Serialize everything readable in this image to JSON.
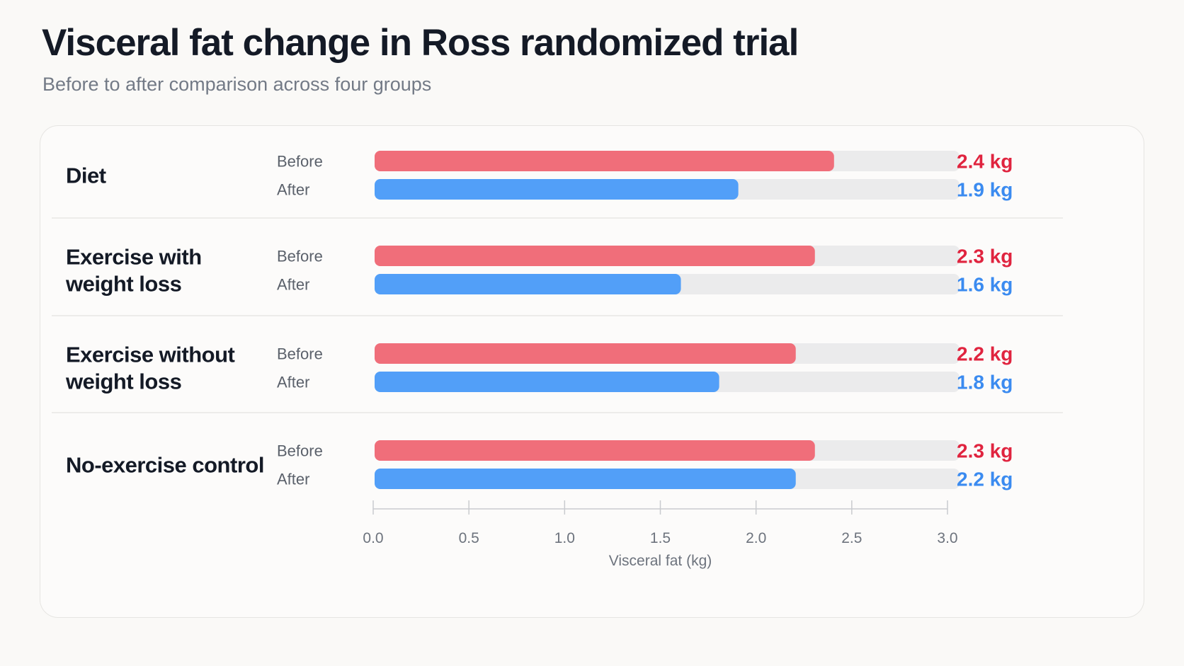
{
  "header": {
    "title": "Visceral fat change in Ross randomized trial",
    "subtitle": "Before to after comparison across four groups"
  },
  "colors": {
    "before": "#f06e7a",
    "after": "#529ff8",
    "before_text": "#e0243f",
    "after_text": "#3b8bf0",
    "track": "#ebebec",
    "divider": "#e8e7e4",
    "axis": "#c9cbcf"
  },
  "chart_data": {
    "type": "bar",
    "orientation": "horizontal",
    "title": "Visceral fat change in Ross randomized trial",
    "subtitle": "Before to after comparison across four groups",
    "xlabel": "Visceral fat (kg)",
    "xlim": [
      0,
      3.0
    ],
    "xticks": [
      "0.0",
      "0.5",
      "1.0",
      "1.5",
      "2.0",
      "2.5",
      "3.0"
    ],
    "grid": false,
    "categories": [
      [
        "Diet"
      ],
      [
        "Exercise with",
        "weight loss"
      ],
      [
        "Exercise without",
        "weight loss"
      ],
      [
        "No-exercise control"
      ]
    ],
    "series": [
      {
        "name": "Before",
        "values": [
          2.4,
          2.3,
          2.2,
          2.3
        ],
        "labels": [
          "2.4 kg",
          "2.3 kg",
          "2.2 kg",
          "2.3 kg"
        ]
      },
      {
        "name": "After",
        "values": [
          1.9,
          1.6,
          1.8,
          2.2
        ],
        "labels": [
          "1.9 kg",
          "1.6 kg",
          "1.8 kg",
          "2.2 kg"
        ]
      }
    ]
  }
}
